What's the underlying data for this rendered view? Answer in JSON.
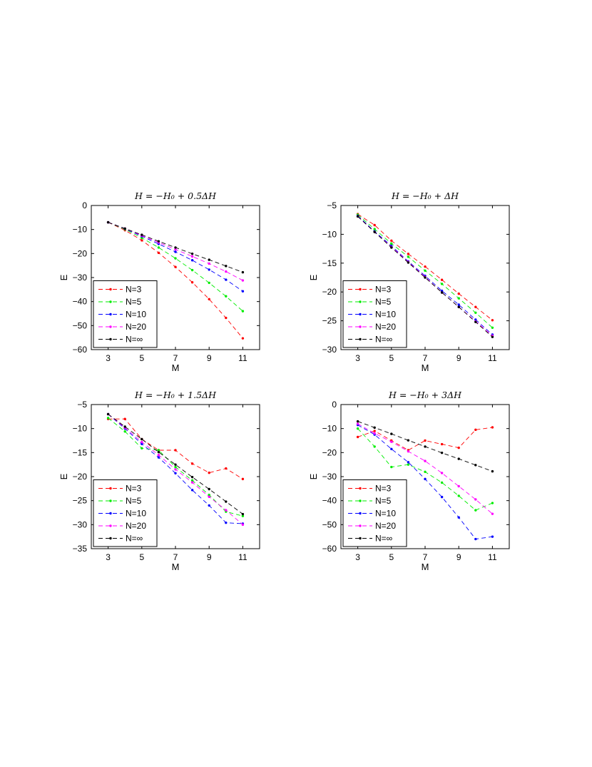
{
  "colors": {
    "N=3": "#ff0000",
    "N=5": "#00ee00",
    "N=10": "#0000ff",
    "N=20": "#ff00ff",
    "N=∞": "#000000"
  },
  "chart_data": [
    {
      "type": "line",
      "title": "H = −H₀ + 0.5ΔH",
      "xlabel": "M",
      "ylabel": "E",
      "xlim": [
        2,
        12
      ],
      "ylim": [
        -60,
        0
      ],
      "xticks": [
        3,
        5,
        7,
        9,
        11
      ],
      "yticks": [
        0,
        -10,
        -20,
        -30,
        -40,
        -50,
        -60
      ],
      "legend_position": "bottom-left",
      "x": [
        3,
        4,
        5,
        6,
        7,
        8,
        9,
        10,
        11
      ],
      "series": [
        {
          "name": "N=3",
          "values": [
            -7,
            -10.3,
            -14.5,
            -19.7,
            -25.6,
            -32,
            -39,
            -46.8,
            -55.3
          ]
        },
        {
          "name": "N=5",
          "values": [
            -7,
            -9.9,
            -13.5,
            -17.5,
            -22,
            -26.9,
            -32.2,
            -37.8,
            -44
          ]
        },
        {
          "name": "N=10",
          "values": [
            -7,
            -9.7,
            -12.8,
            -16,
            -19.3,
            -22.8,
            -26.7,
            -30.9,
            -35.7
          ]
        },
        {
          "name": "N=20",
          "values": [
            -7,
            -9.6,
            -12.5,
            -15.4,
            -18.3,
            -21.2,
            -24.2,
            -27.5,
            -31.2
          ]
        },
        {
          "name": "N=∞",
          "values": [
            -7,
            -9.6,
            -12.2,
            -14.9,
            -17.5,
            -20.1,
            -22.6,
            -25.2,
            -27.8
          ]
        }
      ]
    },
    {
      "type": "line",
      "title": "H = −H₀ + ΔH",
      "xlabel": "M",
      "ylabel": "E",
      "xlim": [
        2,
        12
      ],
      "ylim": [
        -30,
        -5
      ],
      "xticks": [
        3,
        5,
        7,
        9,
        11
      ],
      "yticks": [
        -5,
        -10,
        -15,
        -20,
        -25,
        -30
      ],
      "legend_position": "bottom-left",
      "x": [
        3,
        4,
        5,
        6,
        7,
        8,
        9,
        10,
        11
      ],
      "series": [
        {
          "name": "N=3",
          "values": [
            -6.5,
            -8.4,
            -11.1,
            -13.4,
            -15.6,
            -17.9,
            -20.3,
            -22.6,
            -24.9
          ]
        },
        {
          "name": "N=5",
          "values": [
            -6.6,
            -9.1,
            -11.6,
            -13.9,
            -16.3,
            -18.6,
            -21.1,
            -23.6,
            -26.2
          ]
        },
        {
          "name": "N=10",
          "values": [
            -6.8,
            -9.5,
            -12,
            -14.7,
            -17.2,
            -19.8,
            -22.2,
            -24.8,
            -27.4
          ]
        },
        {
          "name": "N=20",
          "values": [
            -6.9,
            -9.6,
            -12.2,
            -14.8,
            -17.4,
            -20.1,
            -22.6,
            -25.1,
            -27.6
          ]
        },
        {
          "name": "N=∞",
          "values": [
            -6.9,
            -9.6,
            -12.3,
            -14.9,
            -17.5,
            -20.1,
            -22.6,
            -25.2,
            -27.8
          ]
        }
      ]
    },
    {
      "type": "line",
      "title": "H = −H₀ + 1.5ΔH",
      "xlabel": "M",
      "ylabel": "E",
      "xlim": [
        2,
        12
      ],
      "ylim": [
        -35,
        -5
      ],
      "xticks": [
        3,
        5,
        7,
        9,
        11
      ],
      "yticks": [
        -5,
        -10,
        -15,
        -20,
        -25,
        -30,
        -35
      ],
      "legend_position": "bottom-left",
      "x": [
        3,
        4,
        5,
        6,
        7,
        8,
        9,
        10,
        11
      ],
      "series": [
        {
          "name": "N=3",
          "values": [
            -8,
            -8,
            -12.2,
            -14.5,
            -14.5,
            -17.3,
            -19.2,
            -18.3,
            -20.5
          ]
        },
        {
          "name": "N=5",
          "values": [
            -7.8,
            -10.6,
            -14.1,
            -14.5,
            -18,
            -20.8,
            -23.8,
            -27.3,
            -28.2
          ]
        },
        {
          "name": "N=10",
          "values": [
            -7,
            -10,
            -13.2,
            -16,
            -19.3,
            -22.8,
            -26,
            -29.6,
            -29.8
          ]
        },
        {
          "name": "N=20",
          "values": [
            -7,
            -9.8,
            -12.8,
            -15.5,
            -18.5,
            -21.2,
            -24.2,
            -27,
            -30
          ]
        },
        {
          "name": "N=∞",
          "values": [
            -7,
            -9.6,
            -12.2,
            -14.9,
            -17.5,
            -20.1,
            -22.6,
            -25.2,
            -27.8
          ]
        }
      ]
    },
    {
      "type": "line",
      "title": "H = −H₀ + 3ΔH",
      "xlabel": "M",
      "ylabel": "E",
      "xlim": [
        2,
        12
      ],
      "ylim": [
        -60,
        0
      ],
      "xticks": [
        3,
        5,
        7,
        9,
        11
      ],
      "yticks": [
        0,
        -10,
        -20,
        -30,
        -40,
        -50,
        -60
      ],
      "legend_position": "bottom-left",
      "x": [
        3,
        4,
        5,
        6,
        7,
        8,
        9,
        10,
        11
      ],
      "series": [
        {
          "name": "N=3",
          "values": [
            -13.5,
            -11,
            -15,
            -19,
            -15,
            -16.5,
            -18,
            -10.5,
            -9.5
          ]
        },
        {
          "name": "N=5",
          "values": [
            -10,
            -17.5,
            -26,
            -25,
            -28,
            -32.5,
            -38,
            -44,
            -41
          ]
        },
        {
          "name": "N=10",
          "values": [
            -8.5,
            -12.5,
            -18.5,
            -24,
            -31,
            -38.5,
            -47,
            -56,
            -55
          ]
        },
        {
          "name": "N=20",
          "values": [
            -8,
            -12,
            -15.5,
            -19.5,
            -23.5,
            -28.5,
            -34,
            -39.5,
            -45.5
          ]
        },
        {
          "name": "N=∞",
          "values": [
            -7,
            -9.6,
            -12.2,
            -14.9,
            -17.5,
            -20.1,
            -22.6,
            -25.2,
            -27.8
          ]
        }
      ]
    }
  ]
}
